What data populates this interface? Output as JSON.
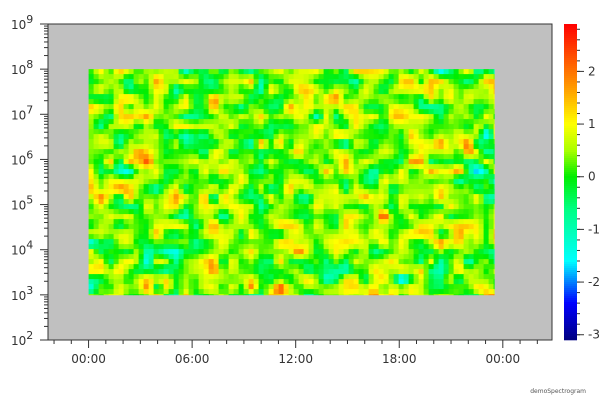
{
  "chart_data": {
    "type": "heatmap",
    "title": "",
    "xlabel": "",
    "ylabel": "",
    "x_axis": {
      "kind": "time",
      "tick_labels": [
        "00:00",
        "06:00",
        "12:00",
        "18:00",
        "00:00"
      ],
      "range_hours": [
        -2.35,
        26.85
      ],
      "data_range_hours": [
        0,
        23.5
      ]
    },
    "y_axis": {
      "scale": "log",
      "tick_labels": [
        {
          "base": "10",
          "exp": "2"
        },
        {
          "base": "10",
          "exp": "3"
        },
        {
          "base": "10",
          "exp": "4"
        },
        {
          "base": "10",
          "exp": "5"
        },
        {
          "base": "10",
          "exp": "6"
        },
        {
          "base": "10",
          "exp": "7"
        },
        {
          "base": "10",
          "exp": "8"
        },
        {
          "base": "10",
          "exp": "9"
        }
      ],
      "range": [
        100,
        1000000000
      ],
      "data_range": [
        1000,
        100000000
      ]
    },
    "z_axis": {
      "tick_labels": [
        "2",
        "1",
        "0",
        "-1",
        "-2",
        "-3"
      ],
      "range": [
        -3.1,
        2.9
      ],
      "colormap": "rainbow",
      "colormap_stops": [
        {
          "z": -3.1,
          "color": "#000080"
        },
        {
          "z": -2.4,
          "color": "#0000ff"
        },
        {
          "z": -1.6,
          "color": "#00ffff"
        },
        {
          "z": -0.6,
          "color": "#00ff80"
        },
        {
          "z": 0.0,
          "color": "#00ee00"
        },
        {
          "z": 0.5,
          "color": "#aaff00"
        },
        {
          "z": 1.0,
          "color": "#ffff00"
        },
        {
          "z": 1.7,
          "color": "#ff9900"
        },
        {
          "z": 2.9,
          "color": "#ff0000"
        }
      ]
    },
    "background_color": "#c0c0c0",
    "grid": false,
    "legend": "colorbar-right"
  },
  "footer_label": "demoSpectrogram"
}
